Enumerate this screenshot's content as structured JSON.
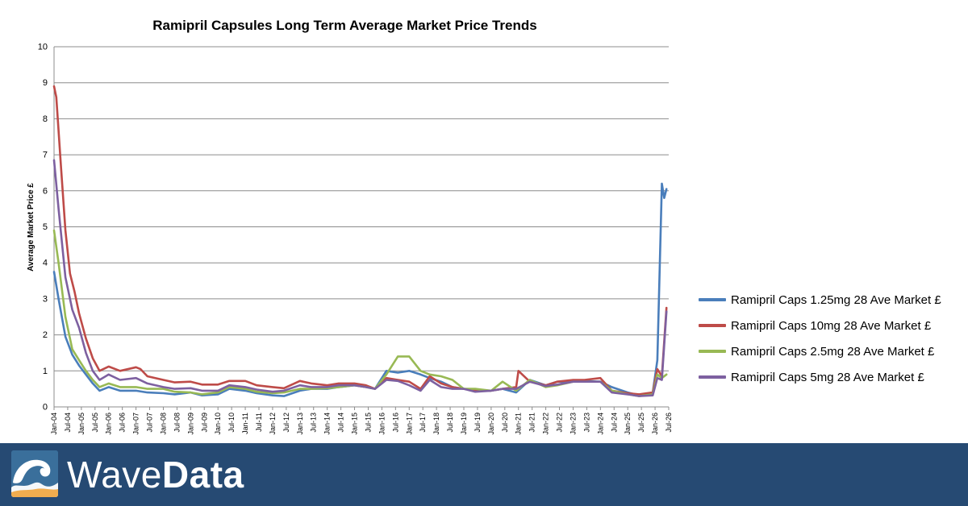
{
  "chart_data": {
    "type": "line",
    "title": "Ramipril Capsules Long Term Average Market Price Trends",
    "ylabel": "Average Market Price £",
    "xlabel": "",
    "ylim": [
      0,
      10
    ],
    "yticks": [
      "0",
      "1",
      "2",
      "3",
      "4",
      "5",
      "6",
      "7",
      "8",
      "9",
      "10"
    ],
    "x_range": [
      "2004-01",
      "2026-07"
    ],
    "xtick_labels": [
      "Jan-04",
      "Jul-04",
      "Jan-05",
      "Jul-05",
      "Jan-06",
      "Jul-06",
      "Jan-07",
      "Jul-07",
      "Jan-08",
      "Jul-08",
      "Jan-09",
      "Jul-09",
      "Jan-10",
      "Jul-10",
      "Jan-11",
      "Jul-11",
      "Jan-12",
      "Jul-12",
      "Jan-13",
      "Jul-13",
      "Jan-14",
      "Jul-14",
      "Jan-15",
      "Jul-15",
      "Jan-16",
      "Jul-16",
      "Jan-17",
      "Jul-17",
      "Jan-18",
      "Jul-18",
      "Jan-19",
      "Jul-19",
      "Jan-20",
      "Jul-20",
      "Jan-21",
      "Jul-21",
      "Jan-22",
      "Jul-22",
      "Jan-23",
      "Jul-23",
      "Jan-24",
      "Jul-24",
      "Jan-25",
      "Jul-25",
      "Jan-26",
      "Jul-26"
    ],
    "grid": true,
    "legend_position": "right",
    "series": [
      {
        "name": "Ramipril Caps 1.25mg 28 Ave Market £",
        "color": "#4a7ebb",
        "points": [
          [
            "2004-01",
            3.75
          ],
          [
            "2004-03",
            3.0
          ],
          [
            "2004-06",
            1.95
          ],
          [
            "2004-09",
            1.45
          ],
          [
            "2004-12",
            1.15
          ],
          [
            "2005-03",
            0.9
          ],
          [
            "2005-06",
            0.65
          ],
          [
            "2005-09",
            0.45
          ],
          [
            "2006-01",
            0.55
          ],
          [
            "2006-06",
            0.45
          ],
          [
            "2007-01",
            0.45
          ],
          [
            "2007-06",
            0.4
          ],
          [
            "2008-01",
            0.38
          ],
          [
            "2008-06",
            0.35
          ],
          [
            "2009-01",
            0.4
          ],
          [
            "2009-06",
            0.32
          ],
          [
            "2010-01",
            0.35
          ],
          [
            "2010-06",
            0.5
          ],
          [
            "2011-01",
            0.45
          ],
          [
            "2011-06",
            0.38
          ],
          [
            "2012-01",
            0.32
          ],
          [
            "2012-06",
            0.3
          ],
          [
            "2013-01",
            0.45
          ],
          [
            "2013-06",
            0.5
          ],
          [
            "2014-01",
            0.5
          ],
          [
            "2014-06",
            0.55
          ],
          [
            "2015-01",
            0.6
          ],
          [
            "2015-06",
            0.55
          ],
          [
            "2015-10",
            0.5
          ],
          [
            "2016-03",
            1.0
          ],
          [
            "2016-08",
            0.95
          ],
          [
            "2017-01",
            1.0
          ],
          [
            "2017-06",
            0.9
          ],
          [
            "2017-10",
            0.8
          ],
          [
            "2018-03",
            0.7
          ],
          [
            "2018-08",
            0.55
          ],
          [
            "2019-01",
            0.5
          ],
          [
            "2019-06",
            0.45
          ],
          [
            "2020-01",
            0.45
          ],
          [
            "2020-06",
            0.5
          ],
          [
            "2020-12",
            0.4
          ],
          [
            "2021-06",
            0.75
          ],
          [
            "2022-01",
            0.6
          ],
          [
            "2022-06",
            0.7
          ],
          [
            "2023-01",
            0.7
          ],
          [
            "2023-06",
            0.72
          ],
          [
            "2024-01",
            0.7
          ],
          [
            "2024-06",
            0.55
          ],
          [
            "2025-01",
            0.4
          ],
          [
            "2025-06",
            0.32
          ],
          [
            "2025-12",
            0.4
          ],
          [
            "2026-02",
            1.3
          ],
          [
            "2026-04",
            6.2
          ],
          [
            "2026-05",
            5.8
          ],
          [
            "2026-06",
            6.05
          ]
        ]
      },
      {
        "name": "Ramipril Caps 10mg 28 Ave Market £",
        "color": "#be4b48",
        "points": [
          [
            "2004-01",
            8.9
          ],
          [
            "2004-02",
            8.6
          ],
          [
            "2004-04",
            6.7
          ],
          [
            "2004-06",
            4.9
          ],
          [
            "2004-08",
            3.7
          ],
          [
            "2004-10",
            3.2
          ],
          [
            "2004-12",
            2.6
          ],
          [
            "2005-03",
            1.9
          ],
          [
            "2005-06",
            1.35
          ],
          [
            "2005-09",
            1.0
          ],
          [
            "2006-01",
            1.12
          ],
          [
            "2006-06",
            1.0
          ],
          [
            "2007-01",
            1.1
          ],
          [
            "2007-03",
            1.05
          ],
          [
            "2007-06",
            0.85
          ],
          [
            "2008-01",
            0.75
          ],
          [
            "2008-06",
            0.68
          ],
          [
            "2009-01",
            0.7
          ],
          [
            "2009-06",
            0.62
          ],
          [
            "2010-01",
            0.62
          ],
          [
            "2010-06",
            0.72
          ],
          [
            "2011-01",
            0.72
          ],
          [
            "2011-06",
            0.6
          ],
          [
            "2012-01",
            0.55
          ],
          [
            "2012-06",
            0.52
          ],
          [
            "2013-01",
            0.72
          ],
          [
            "2013-06",
            0.65
          ],
          [
            "2014-01",
            0.6
          ],
          [
            "2014-06",
            0.65
          ],
          [
            "2015-01",
            0.65
          ],
          [
            "2015-06",
            0.6
          ],
          [
            "2015-10",
            0.5
          ],
          [
            "2016-03",
            0.8
          ],
          [
            "2016-08",
            0.75
          ],
          [
            "2017-01",
            0.7
          ],
          [
            "2017-06",
            0.5
          ],
          [
            "2017-10",
            0.85
          ],
          [
            "2018-03",
            0.65
          ],
          [
            "2018-08",
            0.55
          ],
          [
            "2019-01",
            0.5
          ],
          [
            "2019-06",
            0.45
          ],
          [
            "2020-01",
            0.45
          ],
          [
            "2020-06",
            0.5
          ],
          [
            "2020-12",
            0.55
          ],
          [
            "2021-01",
            1.0
          ],
          [
            "2021-06",
            0.7
          ],
          [
            "2022-01",
            0.6
          ],
          [
            "2022-06",
            0.7
          ],
          [
            "2023-01",
            0.75
          ],
          [
            "2023-06",
            0.75
          ],
          [
            "2024-01",
            0.8
          ],
          [
            "2024-06",
            0.45
          ],
          [
            "2025-01",
            0.38
          ],
          [
            "2025-06",
            0.35
          ],
          [
            "2025-12",
            0.4
          ],
          [
            "2026-02",
            1.05
          ],
          [
            "2026-04",
            0.85
          ],
          [
            "2026-06",
            2.75
          ]
        ]
      },
      {
        "name": "Ramipril Caps 2.5mg 28 Ave Market £",
        "color": "#98b954",
        "points": [
          [
            "2004-01",
            4.9
          ],
          [
            "2004-03",
            4.0
          ],
          [
            "2004-06",
            2.5
          ],
          [
            "2004-09",
            1.6
          ],
          [
            "2004-12",
            1.3
          ],
          [
            "2005-03",
            1.0
          ],
          [
            "2005-06",
            0.75
          ],
          [
            "2005-09",
            0.55
          ],
          [
            "2006-01",
            0.65
          ],
          [
            "2006-06",
            0.55
          ],
          [
            "2007-01",
            0.55
          ],
          [
            "2007-06",
            0.5
          ],
          [
            "2008-01",
            0.5
          ],
          [
            "2008-06",
            0.42
          ],
          [
            "2009-01",
            0.4
          ],
          [
            "2009-06",
            0.35
          ],
          [
            "2010-01",
            0.4
          ],
          [
            "2010-06",
            0.55
          ],
          [
            "2011-01",
            0.5
          ],
          [
            "2011-06",
            0.42
          ],
          [
            "2012-01",
            0.38
          ],
          [
            "2012-06",
            0.4
          ],
          [
            "2013-01",
            0.5
          ],
          [
            "2013-06",
            0.5
          ],
          [
            "2014-01",
            0.52
          ],
          [
            "2014-06",
            0.55
          ],
          [
            "2015-01",
            0.6
          ],
          [
            "2015-06",
            0.55
          ],
          [
            "2015-10",
            0.5
          ],
          [
            "2016-03",
            0.9
          ],
          [
            "2016-08",
            1.4
          ],
          [
            "2017-01",
            1.4
          ],
          [
            "2017-06",
            1.0
          ],
          [
            "2017-10",
            0.9
          ],
          [
            "2018-03",
            0.85
          ],
          [
            "2018-08",
            0.75
          ],
          [
            "2019-01",
            0.5
          ],
          [
            "2019-06",
            0.5
          ],
          [
            "2020-01",
            0.45
          ],
          [
            "2020-06",
            0.7
          ],
          [
            "2020-12",
            0.45
          ],
          [
            "2021-06",
            0.75
          ],
          [
            "2022-01",
            0.55
          ],
          [
            "2022-06",
            0.6
          ],
          [
            "2023-01",
            0.7
          ],
          [
            "2023-06",
            0.7
          ],
          [
            "2024-01",
            0.7
          ],
          [
            "2024-06",
            0.45
          ],
          [
            "2025-01",
            0.35
          ],
          [
            "2025-06",
            0.3
          ],
          [
            "2025-12",
            0.35
          ],
          [
            "2026-02",
            0.9
          ],
          [
            "2026-04",
            0.8
          ],
          [
            "2026-06",
            0.9
          ]
        ]
      },
      {
        "name": "Ramipril Caps 5mg 28 Ave Market £",
        "color": "#7d60a0",
        "points": [
          [
            "2004-01",
            6.85
          ],
          [
            "2004-03",
            5.5
          ],
          [
            "2004-06",
            3.6
          ],
          [
            "2004-09",
            2.7
          ],
          [
            "2004-12",
            2.2
          ],
          [
            "2005-03",
            1.5
          ],
          [
            "2005-06",
            1.0
          ],
          [
            "2005-09",
            0.75
          ],
          [
            "2006-01",
            0.9
          ],
          [
            "2006-06",
            0.75
          ],
          [
            "2007-01",
            0.8
          ],
          [
            "2007-06",
            0.65
          ],
          [
            "2008-01",
            0.55
          ],
          [
            "2008-06",
            0.5
          ],
          [
            "2009-01",
            0.52
          ],
          [
            "2009-06",
            0.45
          ],
          [
            "2010-01",
            0.45
          ],
          [
            "2010-06",
            0.6
          ],
          [
            "2011-01",
            0.55
          ],
          [
            "2011-06",
            0.48
          ],
          [
            "2012-01",
            0.42
          ],
          [
            "2012-06",
            0.45
          ],
          [
            "2013-01",
            0.6
          ],
          [
            "2013-06",
            0.55
          ],
          [
            "2014-01",
            0.55
          ],
          [
            "2014-06",
            0.6
          ],
          [
            "2015-01",
            0.6
          ],
          [
            "2015-06",
            0.55
          ],
          [
            "2015-10",
            0.5
          ],
          [
            "2016-03",
            0.75
          ],
          [
            "2016-08",
            0.72
          ],
          [
            "2017-01",
            0.6
          ],
          [
            "2017-06",
            0.45
          ],
          [
            "2017-10",
            0.75
          ],
          [
            "2018-03",
            0.55
          ],
          [
            "2018-08",
            0.5
          ],
          [
            "2019-01",
            0.5
          ],
          [
            "2019-06",
            0.42
          ],
          [
            "2020-01",
            0.45
          ],
          [
            "2020-06",
            0.5
          ],
          [
            "2020-12",
            0.5
          ],
          [
            "2021-06",
            0.7
          ],
          [
            "2022-01",
            0.58
          ],
          [
            "2022-06",
            0.62
          ],
          [
            "2023-01",
            0.7
          ],
          [
            "2023-06",
            0.7
          ],
          [
            "2024-01",
            0.7
          ],
          [
            "2024-06",
            0.4
          ],
          [
            "2025-01",
            0.35
          ],
          [
            "2025-06",
            0.3
          ],
          [
            "2025-12",
            0.32
          ],
          [
            "2026-02",
            0.8
          ],
          [
            "2026-04",
            0.75
          ],
          [
            "2026-06",
            2.65
          ]
        ]
      }
    ]
  },
  "footer": {
    "brand_light": "Wave",
    "brand_bold": "Data",
    "background_color": "#264a73",
    "logo_icon": "wave-logo-icon"
  }
}
